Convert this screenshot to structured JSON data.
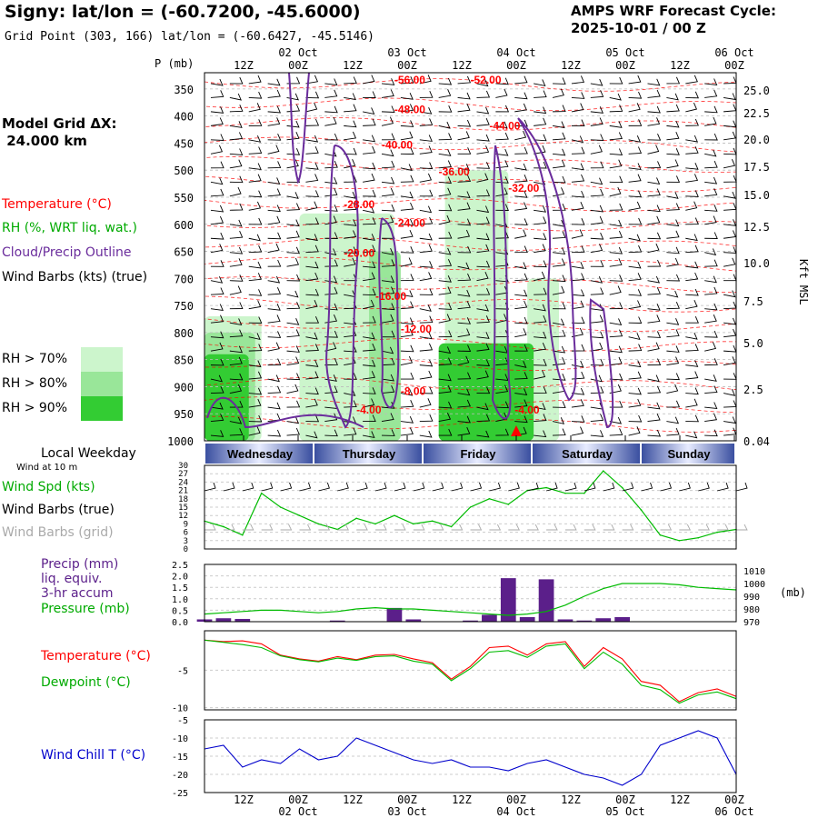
{
  "header": {
    "title": "Signy:  lat/lon = (-60.7200, -45.6000)",
    "subtitle": "Grid Point (303, 166) lat/lon = (-60.6427, -45.5146)",
    "cycle_line1": "AMPS WRF Forecast Cycle:",
    "cycle_line2": "2025-10-01 / 00  Z"
  },
  "legend": {
    "model_grid_line1": "Model Grid ΔX:",
    "model_grid_line2": " 24.000 km",
    "temperature": "Temperature (°C)",
    "rh": "RH (%, WRT liq. wat.)",
    "cloud": "Cloud/Precip Outline",
    "wind": "Wind Barbs (kts) (true)",
    "rh70": "RH > 70%",
    "rh80": "RH > 80%",
    "rh90": "RH > 90%",
    "local_weekday": "Local Weekday",
    "wind_10m": "Wind at 10 m",
    "wind_spd": "Wind Spd (kts)",
    "wind_barbs_true": "Wind Barbs (true)",
    "wind_barbs_grid": "Wind Barbs (grid)",
    "precip1": "Precip (mm)",
    "precip2": "liq. equiv.",
    "precip3": "3-hr accum",
    "pressure": "Pressure (mb)",
    "temp2": "Temperature (°C)",
    "dewpoint": "Dewpoint (°C)",
    "windchill": "Wind Chill T (°C)"
  },
  "colors": {
    "temperature": "#ff0000",
    "rh": "#00cc00",
    "cloud": "#6a2c9c",
    "wind": "#000000",
    "wind_grid": "#aaaaaa",
    "precip": "#5b1f8a",
    "pressure": "#00bb00",
    "windchill": "#0000cc",
    "rh70": "#ccf5cc",
    "rh80": "#99e699",
    "rh90": "#33cc33"
  },
  "chart_data": [
    {
      "type": "heatmap",
      "name": "time-pressure cross section",
      "p_label": "P (mb)",
      "height_label": "Kft MSL",
      "x_ticks_top": [
        "12Z",
        "00Z",
        "12Z",
        "00Z",
        "12Z",
        "00Z",
        "12Z",
        "00Z",
        "12Z",
        "00Z"
      ],
      "x_dates_top": [
        "02 Oct",
        "03 Oct",
        "04 Oct",
        "05 Oct",
        "06 Oct"
      ],
      "pressure_levels": [
        350,
        400,
        450,
        500,
        550,
        600,
        650,
        700,
        750,
        800,
        850,
        900,
        950,
        1000
      ],
      "height_kft": [
        "25.0",
        "22.5",
        "20.0",
        "17.5",
        "15.0",
        "12.5",
        "10.0",
        "7.5",
        "5.0",
        "2.5",
        "0.04"
      ],
      "temperature_labels": [
        {
          "text": "-56.00",
          "hour": 30,
          "p": 340
        },
        {
          "text": "-52.00",
          "hour": 42,
          "p": 340
        },
        {
          "text": "-48.00",
          "hour": 30,
          "p": 395
        },
        {
          "text": "-44.00",
          "hour": 45,
          "p": 425
        },
        {
          "text": "-40.00",
          "hour": 28,
          "p": 460
        },
        {
          "text": "-36.00",
          "hour": 37,
          "p": 510
        },
        {
          "text": "-32.00",
          "hour": 48,
          "p": 540
        },
        {
          "text": "-28.00",
          "hour": 22,
          "p": 570
        },
        {
          "text": "-24.00",
          "hour": 30,
          "p": 605
        },
        {
          "text": "-20.00",
          "hour": 22,
          "p": 660
        },
        {
          "text": "-16.00",
          "hour": 27,
          "p": 740
        },
        {
          "text": "-12.00",
          "hour": 31,
          "p": 800
        },
        {
          "text": "-8.00",
          "hour": 31,
          "p": 915
        },
        {
          "text": "-4.00",
          "hour": 24,
          "p": 950
        },
        {
          "text": "-4.00",
          "hour": 49,
          "p": 950
        }
      ],
      "rh_regions": [
        {
          "level": "rh70",
          "hours": [
            0,
            9
          ],
          "p": [
            770,
            1000
          ]
        },
        {
          "level": "rh70",
          "hours": [
            15,
            30
          ],
          "p": [
            580,
            1000
          ]
        },
        {
          "level": "rh70",
          "hours": [
            38,
            48
          ],
          "p": [
            500,
            1000
          ]
        },
        {
          "level": "rh70",
          "hours": [
            51,
            56
          ],
          "p": [
            700,
            1000
          ]
        },
        {
          "level": "rh80",
          "hours": [
            0,
            8
          ],
          "p": [
            800,
            1000
          ]
        },
        {
          "level": "rh80",
          "hours": [
            26,
            31
          ],
          "p": [
            650,
            1000
          ]
        },
        {
          "level": "rh90",
          "hours": [
            0,
            7
          ],
          "p": [
            840,
            1000
          ]
        },
        {
          "level": "rh90",
          "hours": [
            37,
            52
          ],
          "p": [
            820,
            1000
          ]
        }
      ]
    },
    {
      "type": "line",
      "name": "wind speed",
      "ylabel": "",
      "ylim": [
        0,
        30
      ],
      "y_ticks": [
        0,
        3,
        6,
        9,
        12,
        15,
        18,
        21,
        24,
        27,
        30
      ],
      "hours": [
        0,
        3,
        6,
        9,
        12,
        15,
        18,
        21,
        24,
        27,
        30,
        33,
        36,
        39,
        42,
        45,
        48,
        51,
        54,
        57,
        60,
        63,
        66,
        69,
        72,
        75,
        78,
        81,
        84
      ],
      "series": [
        {
          "values": [
            10,
            8,
            5,
            20,
            15,
            12,
            9,
            7,
            11,
            9,
            12,
            9,
            10,
            8,
            15,
            18,
            16,
            21,
            22,
            20,
            20,
            28,
            22,
            14,
            5,
            3,
            4,
            6,
            7
          ]
        }
      ]
    },
    {
      "type": "bar",
      "name": "precipitation and pressure",
      "ylim": [
        0,
        2.5
      ],
      "y_ticks": [
        "0.0",
        "0.5",
        "1.0",
        "1.5",
        "2.0",
        "2.5"
      ],
      "y2_ticks": [
        "970",
        "980",
        "990",
        "1000",
        "1010"
      ],
      "y2_label": "(mb)",
      "hours": [
        0,
        3,
        6,
        9,
        12,
        15,
        18,
        21,
        24,
        27,
        30,
        33,
        36,
        39,
        42,
        45,
        48,
        51,
        54,
        57,
        60,
        63,
        66,
        69,
        72,
        75,
        78,
        81,
        84
      ],
      "precip_mm": [
        0.1,
        0.15,
        0.12,
        0,
        0,
        0,
        0,
        0.05,
        0,
        0,
        0.6,
        0.1,
        0,
        0,
        0.05,
        0.3,
        1.9,
        0.2,
        1.85,
        0.1,
        0.05,
        0.15,
        0.2,
        0,
        0,
        0,
        0,
        0,
        0
      ],
      "pressure_mb": [
        976,
        977,
        978,
        979,
        979,
        978,
        977,
        978,
        980,
        981,
        980,
        980,
        979,
        978,
        977,
        976,
        975,
        976,
        978,
        983,
        990,
        996,
        1000,
        1000,
        1000,
        999,
        997,
        996,
        995
      ]
    },
    {
      "type": "line",
      "name": "temperature and dewpoint",
      "ylim": [
        -10,
        0
      ],
      "y_ticks": [
        "-5",
        "-10"
      ],
      "hours": [
        0,
        3,
        6,
        9,
        12,
        15,
        18,
        21,
        24,
        27,
        30,
        33,
        36,
        39,
        42,
        45,
        48,
        51,
        54,
        57,
        60,
        63,
        66,
        69,
        72,
        75,
        78,
        81,
        84
      ],
      "series": [
        {
          "name": "Temperature (°C)",
          "values": [
            -1.0,
            -1.2,
            -1.1,
            -1.5,
            -3.0,
            -3.5,
            -3.8,
            -3.2,
            -3.6,
            -3.0,
            -2.9,
            -3.5,
            -4.0,
            -6.2,
            -4.5,
            -2.0,
            -1.8,
            -3.0,
            -1.5,
            -1.2,
            -4.5,
            -2.0,
            -3.5,
            -6.5,
            -7.0,
            -9.2,
            -8.0,
            -7.5,
            -8.5
          ]
        },
        {
          "name": "Dewpoint (°C)",
          "values": [
            -1.0,
            -1.3,
            -1.6,
            -2.0,
            -3.1,
            -3.6,
            -3.9,
            -3.4,
            -3.7,
            -3.2,
            -3.1,
            -3.8,
            -4.2,
            -6.4,
            -4.8,
            -2.6,
            -2.4,
            -3.3,
            -1.8,
            -1.5,
            -4.8,
            -2.6,
            -4.2,
            -7.0,
            -7.6,
            -9.4,
            -8.3,
            -7.9,
            -8.8
          ]
        }
      ]
    },
    {
      "type": "line",
      "name": "wind chill",
      "ylim": [
        -25,
        -5
      ],
      "y_ticks": [
        "-5",
        "-10",
        "-15",
        "-20",
        "-25"
      ],
      "hours": [
        0,
        3,
        6,
        9,
        12,
        15,
        18,
        21,
        24,
        27,
        30,
        33,
        36,
        39,
        42,
        45,
        48,
        51,
        54,
        57,
        60,
        63,
        66,
        69,
        72,
        75,
        78,
        81,
        84
      ],
      "series": [
        {
          "name": "Wind Chill T (°C)",
          "values": [
            -13,
            -12,
            -18,
            -16,
            -17,
            -13,
            -16,
            -15,
            -10,
            -12,
            -14,
            -16,
            -17,
            -16,
            -18,
            -18,
            -19,
            -17,
            -16,
            -18,
            -20,
            -21,
            -23,
            -20,
            -12,
            -10,
            -8,
            -10,
            -20
          ]
        }
      ]
    }
  ],
  "weekday_bar": [
    "Wednesday",
    "Thursday",
    "Friday",
    "Saturday",
    "Sunday"
  ],
  "bottom_axis": {
    "ticks": [
      "12Z",
      "00Z",
      "12Z",
      "00Z",
      "12Z",
      "00Z",
      "12Z",
      "00Z",
      "12Z",
      "00Z"
    ],
    "dates": [
      "02 Oct",
      "03 Oct",
      "04 Oct",
      "05 Oct",
      "06 Oct"
    ]
  }
}
